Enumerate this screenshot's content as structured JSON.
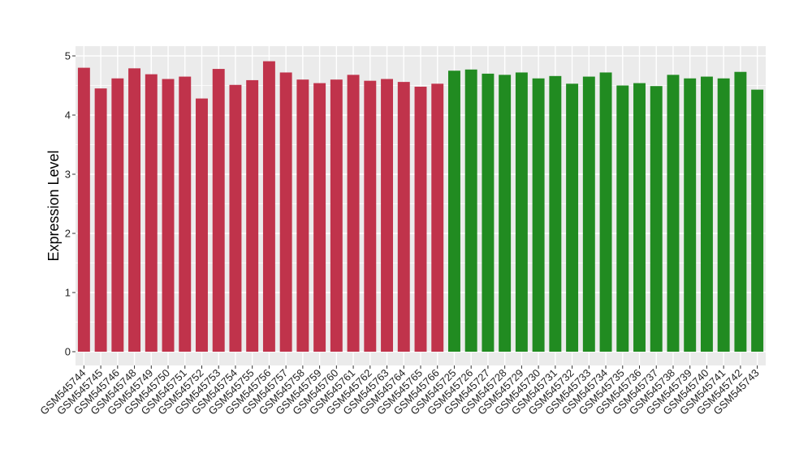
{
  "chart_data": {
    "type": "bar",
    "ylabel": "Expression Level",
    "xlabel": "",
    "ylim": [
      0,
      5
    ],
    "yticks": [
      0,
      1,
      2,
      3,
      4,
      5
    ],
    "grid": true,
    "background": "#ebebeb",
    "grid_color": "#ffffff",
    "colors": {
      "group1": "#c0334b",
      "group2": "#218b21"
    },
    "categories": [
      "GSM545744",
      "GSM545745",
      "GSM545746",
      "GSM545748",
      "GSM545749",
      "GSM545750",
      "GSM545751",
      "GSM545752",
      "GSM545753",
      "GSM545754",
      "GSM545755",
      "GSM545756",
      "GSM545757",
      "GSM545758",
      "GSM545759",
      "GSM545760",
      "GSM545761",
      "GSM545762",
      "GSM545763",
      "GSM545764",
      "GSM545765",
      "GSM545766",
      "GSM545725",
      "GSM545726",
      "GSM545727",
      "GSM545728",
      "GSM545729",
      "GSM545730",
      "GSM545731",
      "GSM545732",
      "GSM545733",
      "GSM545734",
      "GSM545735",
      "GSM545736",
      "GSM545737",
      "GSM545738",
      "GSM545739",
      "GSM545740",
      "GSM545741",
      "GSM545742",
      "GSM545743"
    ],
    "values": [
      4.8,
      4.45,
      4.62,
      4.79,
      4.69,
      4.61,
      4.65,
      4.28,
      4.78,
      4.51,
      4.59,
      4.91,
      4.72,
      4.6,
      4.54,
      4.6,
      4.68,
      4.58,
      4.61,
      4.56,
      4.48,
      4.53,
      4.75,
      4.77,
      4.7,
      4.68,
      4.72,
      4.62,
      4.66,
      4.53,
      4.65,
      4.72,
      4.5,
      4.54,
      4.49,
      4.68,
      4.62,
      4.65,
      4.62,
      4.73,
      4.43
    ],
    "groups": [
      "group1",
      "group1",
      "group1",
      "group1",
      "group1",
      "group1",
      "group1",
      "group1",
      "group1",
      "group1",
      "group1",
      "group1",
      "group1",
      "group1",
      "group1",
      "group1",
      "group1",
      "group1",
      "group1",
      "group1",
      "group1",
      "group1",
      "group2",
      "group2",
      "group2",
      "group2",
      "group2",
      "group2",
      "group2",
      "group2",
      "group2",
      "group2",
      "group2",
      "group2",
      "group2",
      "group2",
      "group2",
      "group2",
      "group2",
      "group2",
      "group2"
    ]
  }
}
